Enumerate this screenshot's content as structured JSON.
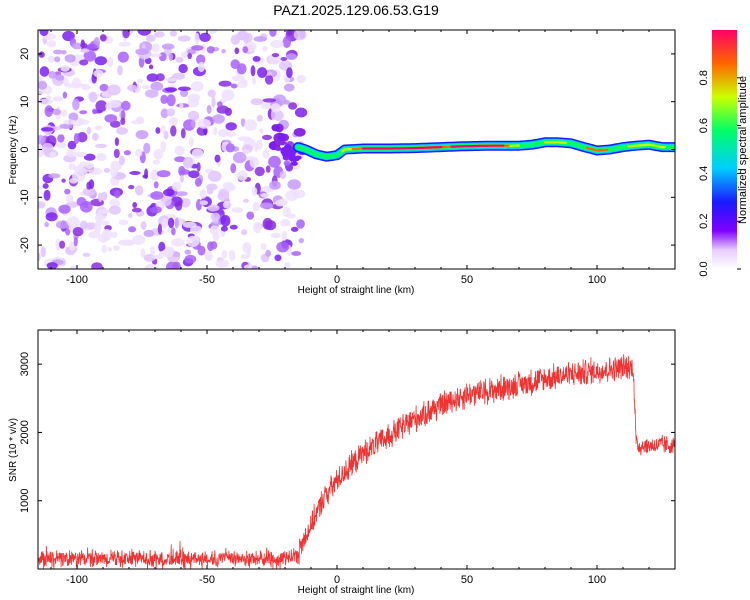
{
  "figure": {
    "title": "PAZ1.2025.129.06.53.G19"
  },
  "chart_data": [
    {
      "type": "heatmap",
      "name": "spectrogram",
      "xlabel": "Height of straight line (km)",
      "ylabel": "Frequency (Hz)",
      "xlim": [
        -115,
        130
      ],
      "ylim": [
        -25,
        25
      ],
      "xticks": [
        -100,
        -50,
        0,
        50,
        100
      ],
      "yticks": [
        -20,
        -10,
        0,
        10,
        20
      ],
      "noise_region_x": [
        -115,
        -15
      ],
      "signal_track": {
        "x": [
          -15,
          -12,
          -8,
          -4,
          0,
          3,
          10,
          20,
          30,
          40,
          50,
          60,
          70,
          75,
          80,
          85,
          90,
          95,
          100,
          105,
          110,
          115,
          120,
          125,
          130
        ],
        "y": [
          0.5,
          0.0,
          -1.0,
          -1.5,
          -1.2,
          0.0,
          0.2,
          0.2,
          0.3,
          0.5,
          0.7,
          0.8,
          0.8,
          1.0,
          1.5,
          1.5,
          1.3,
          0.5,
          -0.2,
          0.0,
          0.5,
          0.8,
          1.0,
          0.5,
          0.5
        ]
      },
      "colorbar": {
        "label": "Normalized spectral amplitude",
        "range": [
          0,
          1
        ],
        "ticks": [
          "0.0",
          "0.2",
          "0.4",
          "0.6",
          "0.8"
        ]
      },
      "grid": false
    },
    {
      "type": "line",
      "name": "snr",
      "xlabel": "Height of straight line (km)",
      "ylabel": "SNR (10 * v/v)",
      "xlim": [
        -115,
        130
      ],
      "ylim": [
        0,
        3500
      ],
      "xticks": [
        -100,
        -50,
        0,
        50,
        100
      ],
      "yticks": [
        1000,
        2000,
        3000
      ],
      "series": [
        {
          "color": "#ee3333",
          "profile": {
            "x": [
              -115,
              -20,
              -15,
              -12,
              -8,
              -5,
              0,
              5,
              10,
              20,
              30,
              40,
              50,
              60,
              70,
              80,
              90,
              100,
              105,
              110,
              114,
              115,
              116,
              120,
              125,
              130
            ],
            "y": [
              150,
              150,
              220,
              500,
              800,
              1050,
              1300,
              1500,
              1700,
              1950,
              2200,
              2400,
              2550,
              2620,
              2700,
              2780,
              2850,
              2900,
              2930,
              2950,
              2950,
              1850,
              1800,
              1800,
              1820,
              1800
            ]
          }
        }
      ],
      "grid": false
    }
  ]
}
